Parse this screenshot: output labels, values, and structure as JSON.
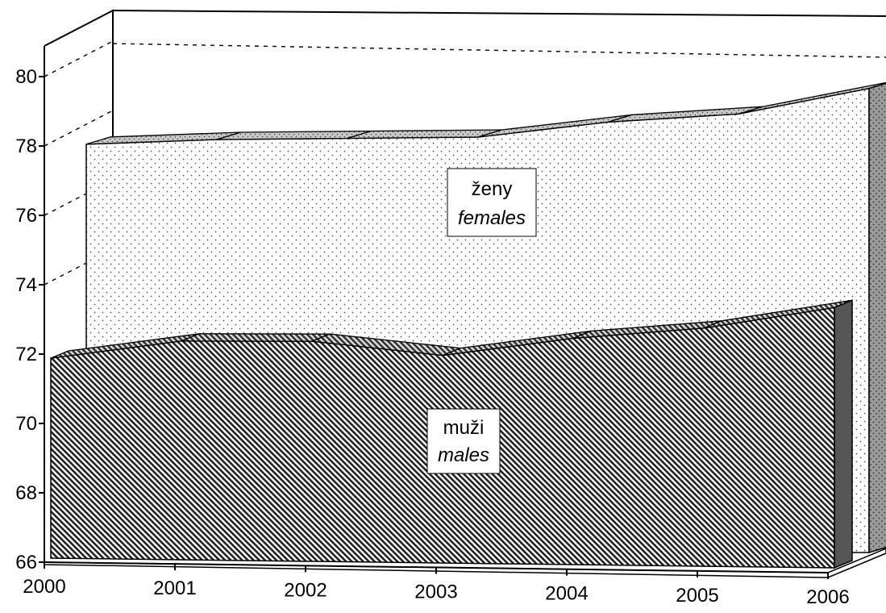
{
  "chart_data": {
    "type": "area",
    "x": [
      "2000",
      "2001",
      "2002",
      "2003",
      "2004",
      "2005",
      "2006"
    ],
    "yticks": [
      "66",
      "68",
      "70",
      "72",
      "74",
      "76",
      "78",
      "80"
    ],
    "ylim": [
      66,
      81
    ],
    "series": [
      {
        "key": "females",
        "label_cz": "ženy",
        "label_en": "females",
        "values": [
          78.4,
          78.5,
          78.5,
          78.5,
          78.9,
          79.1,
          79.8
        ],
        "pattern": "dots"
      },
      {
        "key": "males",
        "label_cz": "muži",
        "label_en": "males",
        "values": [
          72.0,
          72.5,
          72.5,
          72.1,
          72.6,
          72.9,
          73.5
        ],
        "pattern": "diagonal-hatch"
      }
    ],
    "grid": false,
    "legend": "inline-labels"
  }
}
